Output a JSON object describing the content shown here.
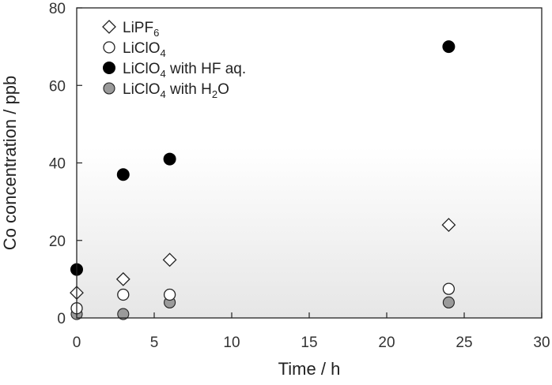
{
  "chart_data": {
    "type": "scatter",
    "title": "",
    "xlabel": "Time / h",
    "ylabel": "Co concentration / ppb",
    "xlim": [
      0,
      30
    ],
    "ylim": [
      0,
      80
    ],
    "x_ticks": [
      0,
      5,
      10,
      15,
      20,
      25,
      30
    ],
    "y_ticks": [
      0,
      20,
      40,
      60,
      80
    ],
    "grid": false,
    "legend_position": "top-left",
    "background": "gradient white to light gray toward bottom",
    "series": [
      {
        "name": "LiPF6",
        "label_main": "LiPF",
        "label_sub": "6",
        "label_rest": "",
        "marker": "diamond-open",
        "x": [
          0,
          3,
          6,
          24
        ],
        "y": [
          6.5,
          10,
          15,
          24
        ]
      },
      {
        "name": "LiClO4",
        "label_main": "LiClO",
        "label_sub": "4",
        "label_rest": "",
        "marker": "circle-open",
        "x": [
          0,
          3,
          6,
          24
        ],
        "y": [
          2.5,
          6,
          6,
          7.5
        ]
      },
      {
        "name": "LiClO4 with HF aq.",
        "label_main": "LiClO",
        "label_sub": "4",
        "label_rest": " with HF aq.",
        "marker": "circle-black",
        "x": [
          0,
          3,
          6,
          24
        ],
        "y": [
          12.5,
          37,
          41,
          70
        ]
      },
      {
        "name": "LiClO4 with H2O",
        "label_main": "LiClO",
        "label_sub": "4",
        "label_rest": " with H",
        "label_sub2": "2",
        "label_rest2": "O",
        "marker": "circle-gray",
        "x": [
          0,
          3,
          6,
          24
        ],
        "y": [
          1,
          1,
          4,
          4
        ]
      }
    ]
  },
  "colors": {
    "axis": "#222222",
    "black_fill": "#000000",
    "gray_fill": "#9a9a9a",
    "open_fill": "#ffffff",
    "gradient_top": "#ffffff",
    "gradient_bottom": "#e6e6e6"
  }
}
